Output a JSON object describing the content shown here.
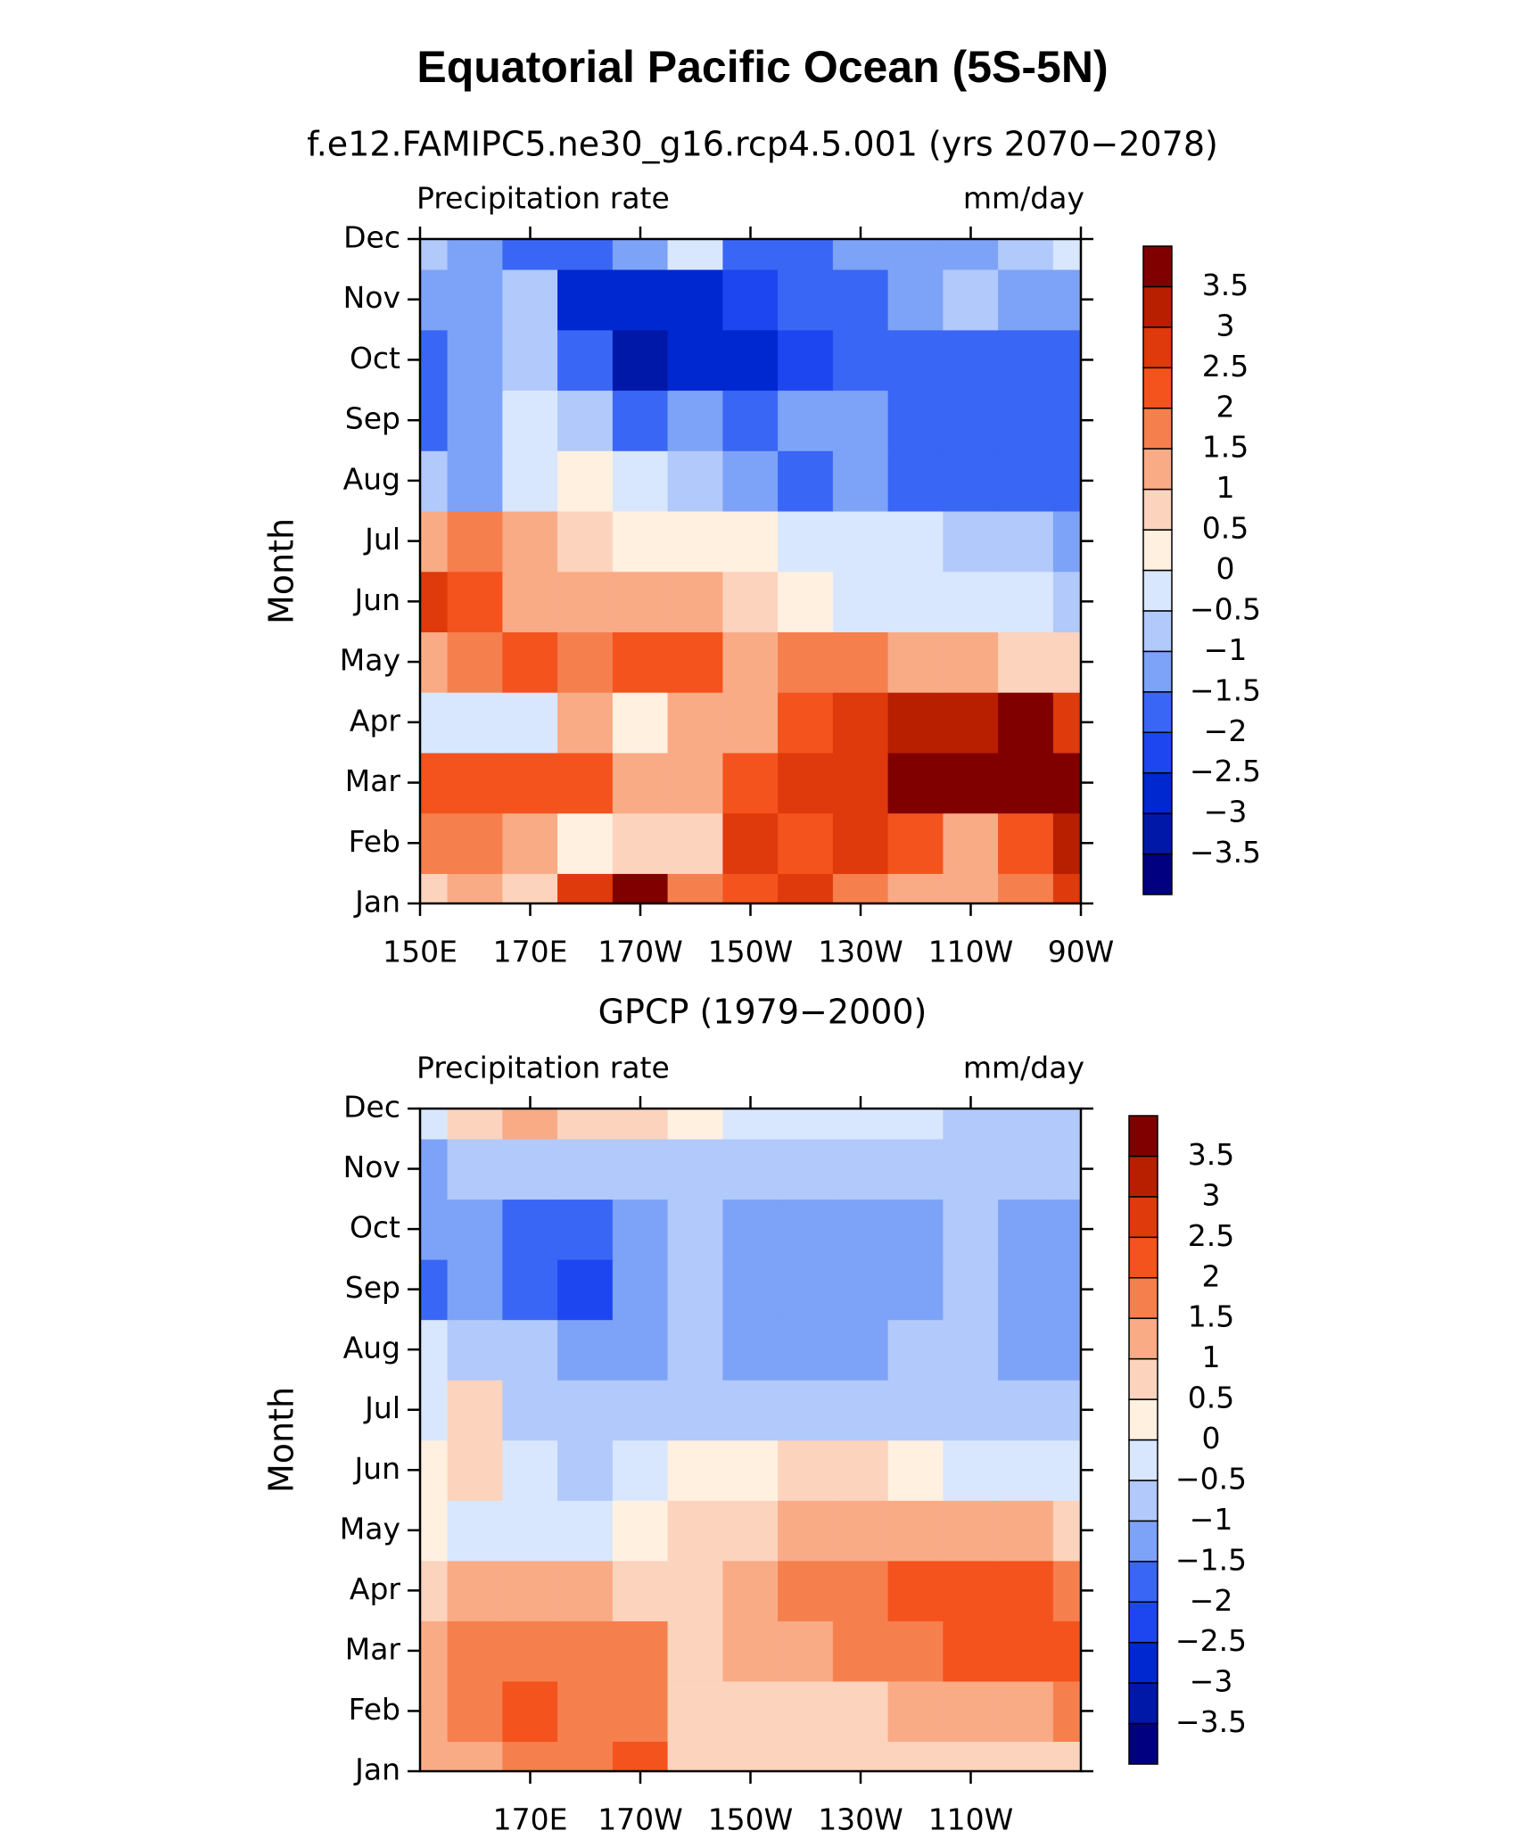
{
  "title": "Equatorial Pacific Ocean (5S-5N)",
  "chart_data": [
    {
      "type": "heatmap",
      "title": "f.e12.FAMIPC5.ne30_g16.rcp4.5.001 (yrs 2070−2078)",
      "subtitle": "Precipitation rate",
      "units": "mm/day",
      "y_label": "Month",
      "categories": [
        "Jan",
        "Feb",
        "Mar",
        "Apr",
        "May",
        "Jun",
        "Jul",
        "Aug",
        "Sep",
        "Oct",
        "Nov",
        "Dec"
      ],
      "x": [
        150,
        160,
        170,
        180,
        190,
        200,
        210,
        220,
        230,
        240,
        250,
        260,
        270
      ],
      "xlim": [
        150,
        270
      ],
      "xticks": [
        {
          "value": 150,
          "label": "150E"
        },
        {
          "value": 170,
          "label": "170E"
        },
        {
          "value": 190,
          "label": "170W"
        },
        {
          "value": 210,
          "label": "150W"
        },
        {
          "value": 230,
          "label": "130W"
        },
        {
          "value": 250,
          "label": "110W"
        },
        {
          "value": 270,
          "label": "90W"
        }
      ],
      "values": [
        [
          0.5,
          1,
          0.5,
          2.5,
          3.5,
          1.5,
          2,
          2.5,
          1.5,
          1,
          1,
          1.5,
          2.5
        ],
        [
          1.5,
          1.5,
          1,
          0,
          0.5,
          0.5,
          2.5,
          2,
          2.5,
          2,
          1,
          2,
          3
        ],
        [
          2,
          2,
          2,
          2,
          1,
          1,
          2,
          2.5,
          2.5,
          3.5,
          3.5,
          4,
          3.5
        ],
        [
          -0.5,
          -0.5,
          -0.5,
          1,
          0,
          1,
          1,
          2,
          2.5,
          3,
          3,
          3.5,
          2.5
        ],
        [
          1,
          1.5,
          2,
          1.5,
          2,
          2,
          1,
          1.5,
          1.5,
          1,
          1,
          0.5,
          0.5
        ],
        [
          2.5,
          2,
          1,
          1,
          1,
          1,
          0.5,
          0,
          -0.5,
          -0.5,
          -0.5,
          -0.5,
          -1
        ],
        [
          1,
          1.5,
          1,
          0.5,
          0,
          0,
          0,
          -0.5,
          -0.5,
          -0.5,
          -1,
          -1,
          -1.5
        ],
        [
          -1,
          -1.5,
          -0.5,
          0,
          -0.5,
          -1,
          -1.5,
          -2,
          -1.5,
          -2,
          -2,
          -2,
          -2
        ],
        [
          -2,
          -1.5,
          -0.5,
          -1,
          -2,
          -1.5,
          -2,
          -1.5,
          -1.5,
          -2,
          -2,
          -2,
          -2
        ],
        [
          -2,
          -1.5,
          -1,
          -2,
          -3.5,
          -3,
          -3,
          -2.5,
          -2,
          -2,
          -2,
          -2,
          -2
        ],
        [
          -1.5,
          -1.5,
          -1,
          -3,
          -3,
          -3,
          -2.5,
          -2,
          -2,
          -1.5,
          -1,
          -1.5,
          -1.5
        ],
        [
          -1,
          -1.5,
          -2,
          -2,
          -1.5,
          -0.5,
          -2,
          -2,
          -1.5,
          -1.5,
          -1.5,
          -1,
          -0.5
        ]
      ],
      "colorbar": {
        "clim": [
          -4,
          4
        ],
        "colors": [
          "#000080",
          "#0018a8",
          "#0028d0",
          "#1e46f0",
          "#3a66f5",
          "#7da3f8",
          "#b2c9fb",
          "#d8e7fd",
          "#fff0e0",
          "#fcd3bd",
          "#f9ab86",
          "#f67f4e",
          "#f4531d",
          "#de3a0c",
          "#b71f00",
          "#800000"
        ],
        "ticks": [
          {
            "value": -3.5,
            "label": "−3.5"
          },
          {
            "value": -3,
            "label": "−3"
          },
          {
            "value": -2.5,
            "label": "−2.5"
          },
          {
            "value": -2,
            "label": "−2"
          },
          {
            "value": -1.5,
            "label": "−1.5"
          },
          {
            "value": -1,
            "label": "−1"
          },
          {
            "value": -0.5,
            "label": "−0.5"
          },
          0,
          0.5,
          1,
          1.5,
          2,
          2.5,
          3,
          3.5
        ]
      }
    },
    {
      "type": "heatmap",
      "title": "GPCP (1979−2000)",
      "subtitle": "Precipitation rate",
      "units": "mm/day",
      "y_label": "Month",
      "categories": [
        "Jan",
        "Feb",
        "Mar",
        "Apr",
        "May",
        "Jun",
        "Jul",
        "Aug",
        "Sep",
        "Oct",
        "Nov",
        "Dec"
      ],
      "x": [
        150,
        160,
        170,
        180,
        190,
        200,
        210,
        220,
        230,
        240,
        250,
        260,
        270
      ],
      "xlim": [
        150,
        270
      ],
      "xticks": [
        {
          "value": 170,
          "label": "170E"
        },
        {
          "value": 190,
          "label": "170W"
        },
        {
          "value": 210,
          "label": "150W"
        },
        {
          "value": 230,
          "label": "130W"
        },
        {
          "value": 250,
          "label": "110W"
        }
      ],
      "values": [
        [
          1,
          1,
          1.5,
          1.5,
          2,
          0.5,
          0.5,
          0.5,
          0.5,
          0.5,
          0.5,
          0.5,
          0.5
        ],
        [
          1,
          1.5,
          2,
          1.5,
          1.5,
          0.5,
          0.5,
          0.5,
          0.5,
          1,
          1,
          1,
          1.5
        ],
        [
          1,
          1.5,
          1.5,
          1.5,
          1.5,
          0.5,
          1,
          1,
          1.5,
          1.5,
          2,
          2,
          2
        ],
        [
          0.5,
          1,
          1,
          1,
          0.5,
          0.5,
          1,
          1.5,
          1.5,
          2,
          2,
          2,
          1.5
        ],
        [
          0,
          -0.5,
          -0.5,
          -0.5,
          0,
          0.5,
          0.5,
          1,
          1,
          1,
          1,
          1,
          0.5
        ],
        [
          0,
          0.5,
          -0.5,
          -1,
          -0.5,
          0,
          0,
          0.5,
          0.5,
          0,
          -0.5,
          -0.5,
          -0.5
        ],
        [
          -0.5,
          0.5,
          -1,
          -1,
          -1,
          -1,
          -1,
          -1,
          -1,
          -1,
          -1,
          -1,
          -1
        ],
        [
          -0.5,
          -1,
          -1,
          -1.5,
          -1.5,
          -1,
          -1.5,
          -1.5,
          -1.5,
          -1,
          -1,
          -1.5,
          -1.5
        ],
        [
          -2,
          -1.5,
          -2,
          -2.5,
          -1.5,
          -1,
          -1.5,
          -1.5,
          -1.5,
          -1.5,
          -1,
          -1.5,
          -1.5
        ],
        [
          -1.5,
          -1.5,
          -2,
          -2,
          -1.5,
          -1,
          -1.5,
          -1.5,
          -1.5,
          -1.5,
          -1,
          -1.5,
          -1.5
        ],
        [
          -1.5,
          -1,
          -1,
          -1,
          -1,
          -1,
          -1,
          -1,
          -1,
          -1,
          -1,
          -1,
          -1
        ],
        [
          -0.5,
          0.5,
          1,
          0.5,
          0.5,
          0,
          -0.5,
          -0.5,
          -0.5,
          -0.5,
          -1,
          -1,
          -1
        ]
      ],
      "colorbar": {
        "clim": [
          -4,
          4
        ],
        "colors": [
          "#000080",
          "#0018a8",
          "#0028d0",
          "#1e46f0",
          "#3a66f5",
          "#7da3f8",
          "#b2c9fb",
          "#d8e7fd",
          "#fff0e0",
          "#fcd3bd",
          "#f9ab86",
          "#f67f4e",
          "#f4531d",
          "#de3a0c",
          "#b71f00",
          "#800000"
        ],
        "ticks": [
          {
            "value": -3.5,
            "label": "−3.5"
          },
          {
            "value": -3,
            "label": "−3"
          },
          {
            "value": -2.5,
            "label": "−2.5"
          },
          {
            "value": -2,
            "label": "−2"
          },
          {
            "value": -1.5,
            "label": "−1.5"
          },
          {
            "value": -1,
            "label": "−1"
          },
          {
            "value": -0.5,
            "label": "−0.5"
          },
          0,
          0.5,
          1,
          1.5,
          2,
          2.5,
          3,
          3.5
        ]
      }
    }
  ]
}
